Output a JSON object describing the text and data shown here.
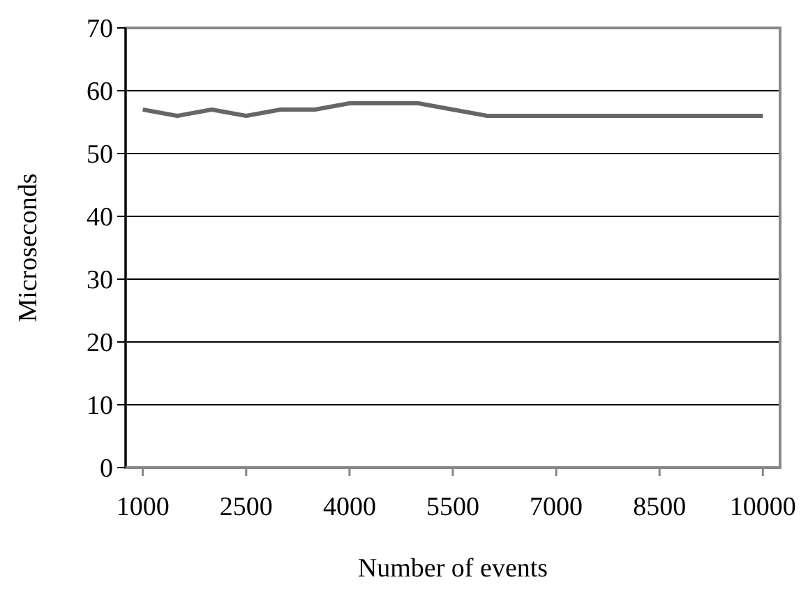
{
  "chart_data": {
    "type": "line",
    "xlabel": "Number of events",
    "ylabel": "Microseconds",
    "categories": [
      "1000",
      null,
      null,
      "2500",
      null,
      null,
      "4000",
      null,
      null,
      "5500",
      null,
      null,
      "7000",
      null,
      null,
      "8500",
      null,
      null,
      "10000"
    ],
    "series": [
      {
        "color": "#666666",
        "values": [
          57,
          56,
          57,
          56,
          57,
          57,
          58,
          58,
          58,
          57,
          56,
          56,
          56,
          56,
          56,
          56,
          56,
          56,
          56
        ]
      }
    ],
    "ylim": [
      0,
      70
    ],
    "yticks": [
      0,
      10,
      20,
      30,
      40,
      50,
      60,
      70
    ],
    "grid": "y",
    "marker": "none",
    "line_style": "solid"
  }
}
